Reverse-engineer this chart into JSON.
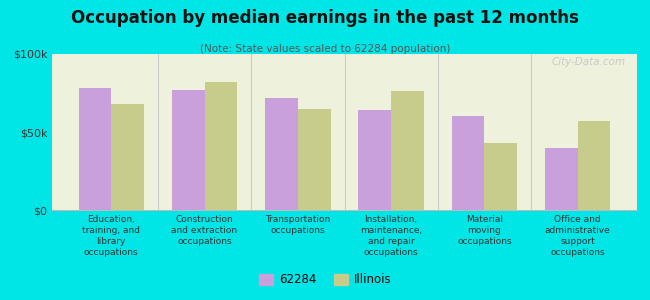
{
  "title": "Occupation by median earnings in the past 12 months",
  "subtitle": "(Note: State values scaled to 62284 population)",
  "categories": [
    "Education,\ntraining, and\nlibrary\noccupations",
    "Construction\nand extraction\noccupations",
    "Transportation\noccupations",
    "Installation,\nmaintenance,\nand repair\noccupations",
    "Material\nmoving\noccupations",
    "Office and\nadministrative\nsupport\noccupations"
  ],
  "values_62284": [
    78000,
    77000,
    72000,
    64000,
    60000,
    40000
  ],
  "values_illinois": [
    68000,
    82000,
    65000,
    76000,
    43000,
    57000
  ],
  "color_62284": "#c9a0dc",
  "color_illinois": "#c8cc8a",
  "background_outer": "#00e5e5",
  "background_plot": "#eef2dc",
  "ylim": [
    0,
    100000
  ],
  "yticks": [
    0,
    50000,
    100000
  ],
  "ytick_labels": [
    "$0",
    "$50k",
    "$100k"
  ],
  "legend_label_1": "62284",
  "legend_label_2": "Illinois",
  "bar_width": 0.35,
  "watermark": "City-Data.com"
}
